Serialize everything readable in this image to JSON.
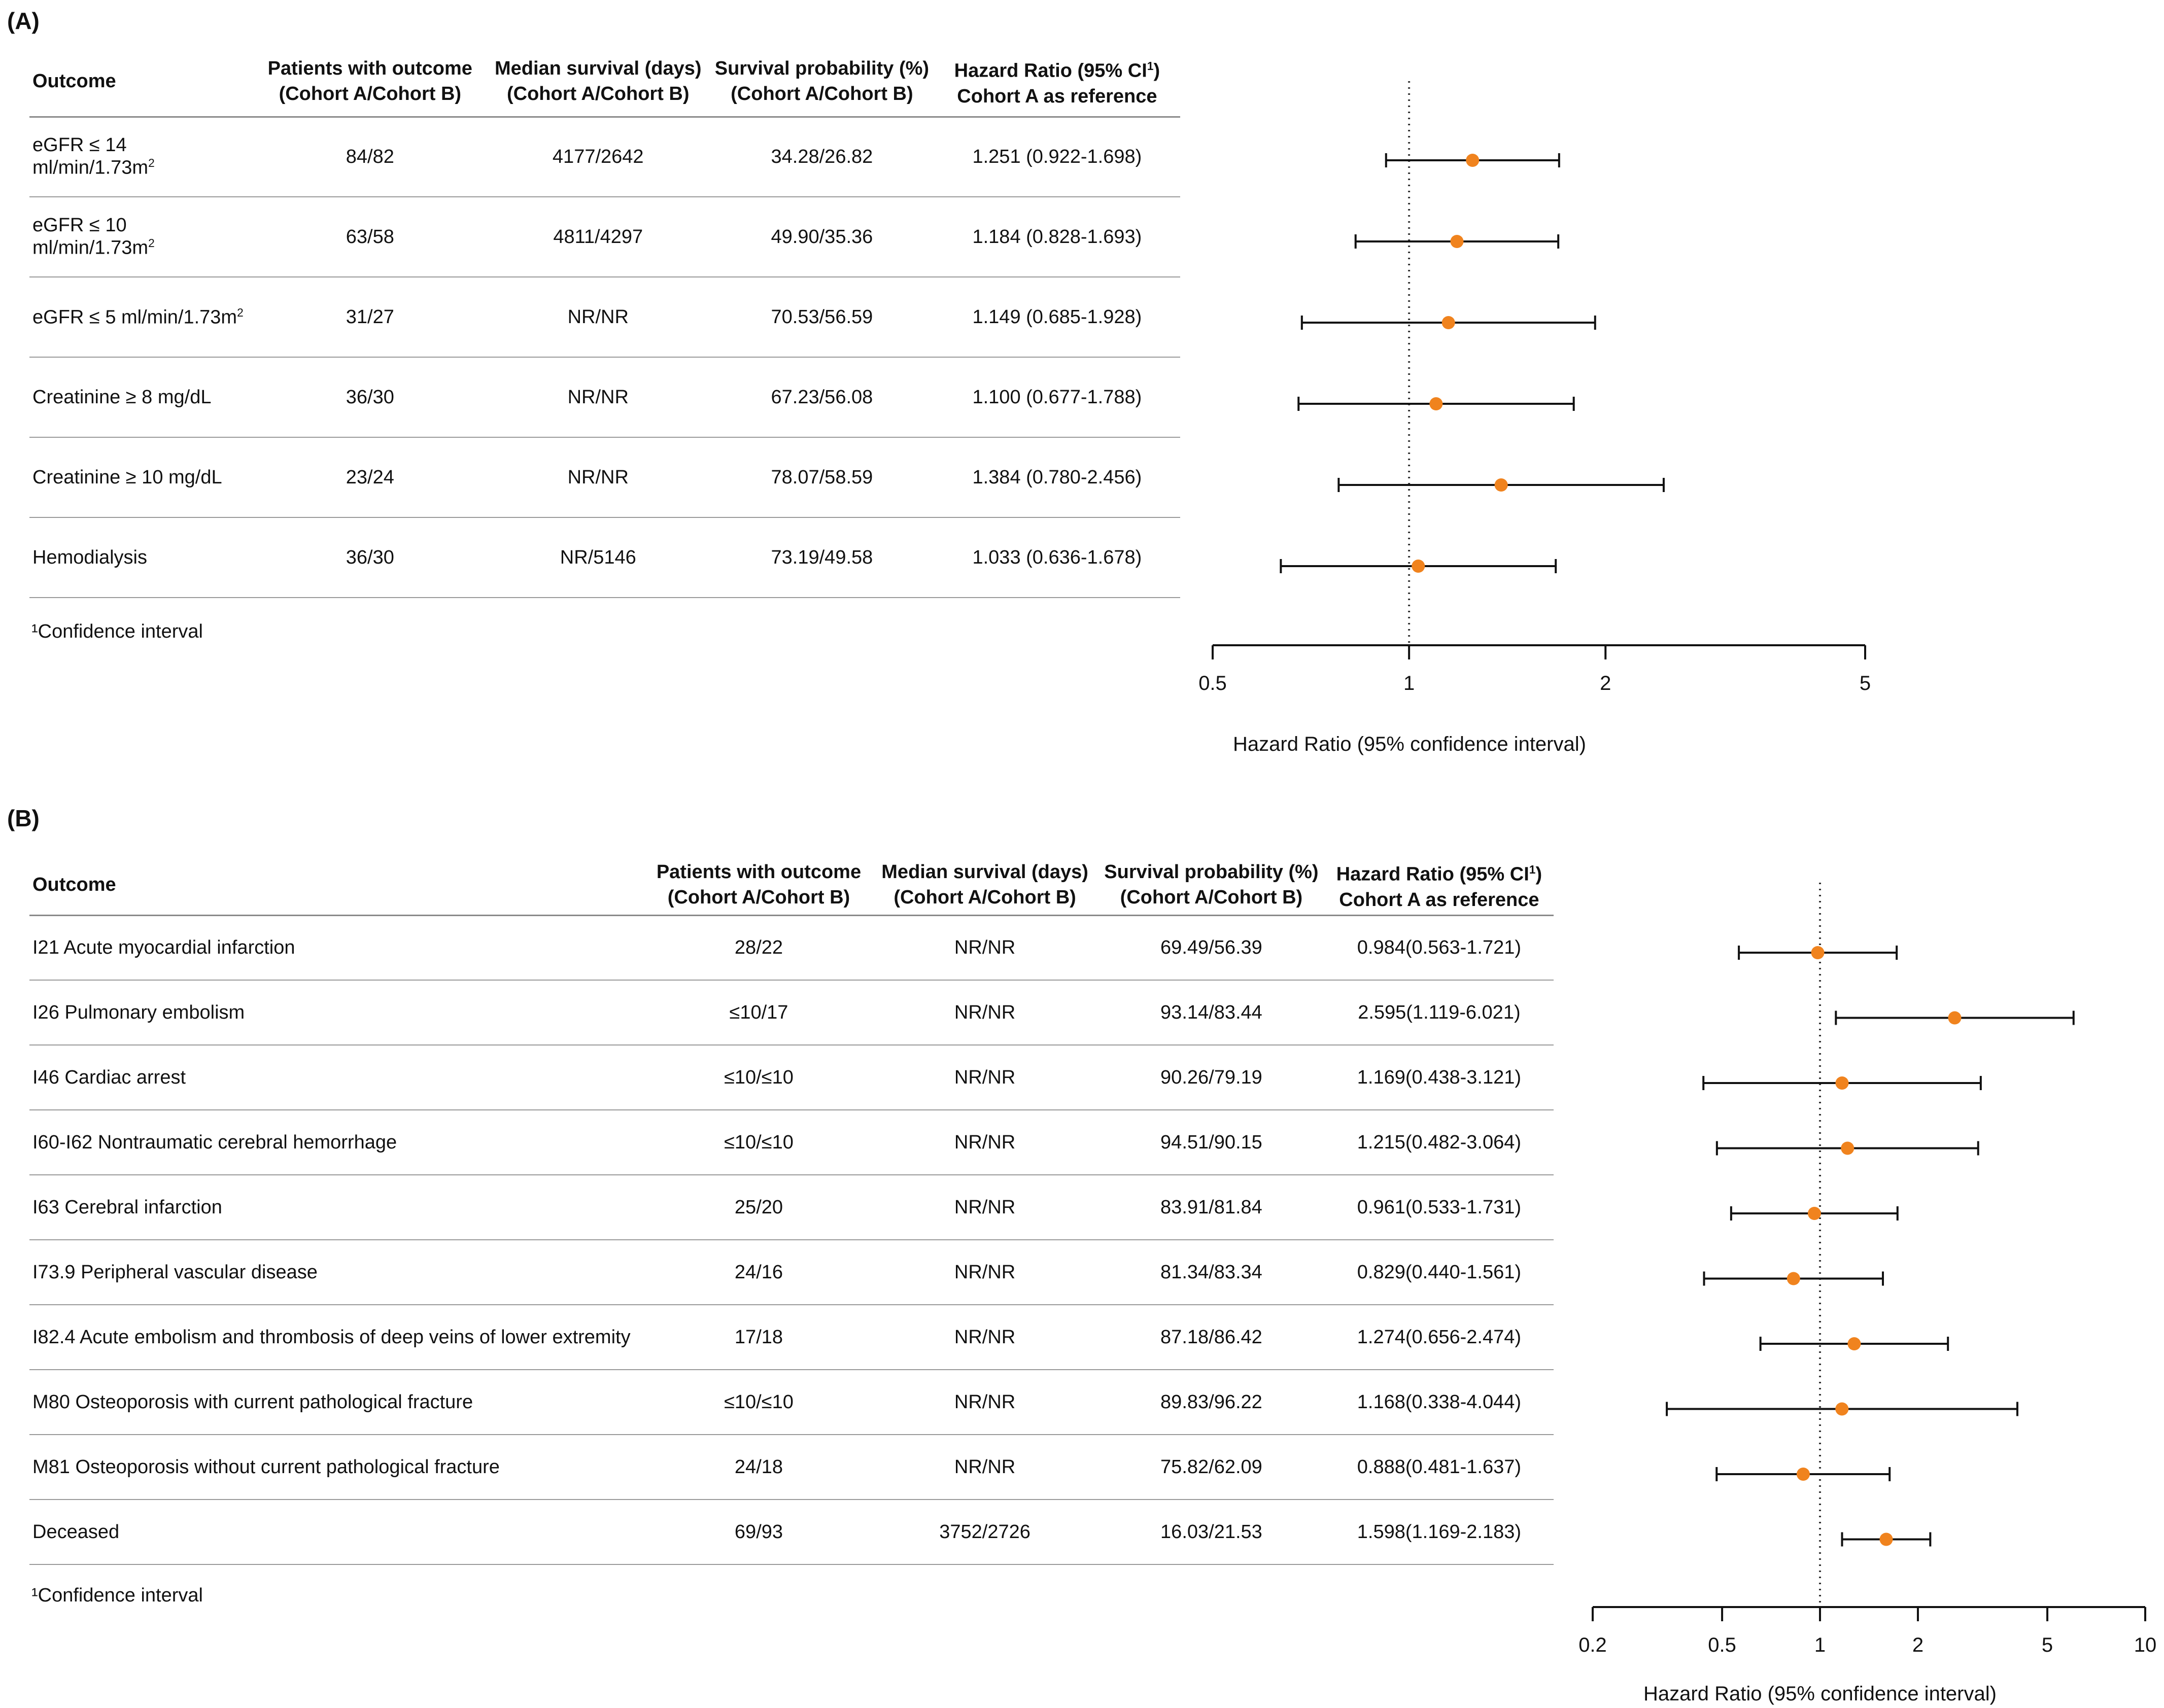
{
  "panel_a": {
    "label": "(A)",
    "headers": {
      "outcome": "Outcome",
      "patients_1": "Patients with outcome",
      "patients_2": "(Cohort A/Cohort B)",
      "median_1": "Median survival (days)",
      "median_2": "(Cohort A/Cohort B)",
      "prob_1": "Survival probability (%)",
      "prob_2": "(Cohort A/Cohort B)",
      "hr_1": "Hazard Ratio (95% CI",
      "hr_sup": "1",
      "hr_close": ")",
      "hr_2": "Cohort A as reference"
    },
    "rows": [
      {
        "outcome": "eGFR ≤ 14 ml/min/1.73m",
        "sup": "2",
        "patients": "84/82",
        "median": "4177/2642",
        "prob": "34.28/26.82",
        "hr_text": "1.251 (0.922-1.698)"
      },
      {
        "outcome": "eGFR ≤ 10 ml/min/1.73m",
        "sup": "2",
        "patients": "63/58",
        "median": "4811/4297",
        "prob": "49.90/35.36",
        "hr_text": "1.184 (0.828-1.693)"
      },
      {
        "outcome": "eGFR ≤ 5 ml/min/1.73m",
        "sup": "2",
        "patients": "31/27",
        "median": "NR/NR",
        "prob": "70.53/56.59",
        "hr_text": "1.149 (0.685-1.928)"
      },
      {
        "outcome": "Creatinine ≥ 8 mg/dL",
        "sup": "",
        "patients": "36/30",
        "median": "NR/NR",
        "prob": "67.23/56.08",
        "hr_text": "1.100 (0.677-1.788)"
      },
      {
        "outcome": "Creatinine ≥ 10 mg/dL",
        "sup": "",
        "patients": "23/24",
        "median": "NR/NR",
        "prob": "78.07/58.59",
        "hr_text": "1.384 (0.780-2.456)"
      },
      {
        "outcome": "Hemodialysis",
        "sup": "",
        "patients": "36/30",
        "median": "NR/5146",
        "prob": "73.19/49.58",
        "hr_text": "1.033 (0.636-1.678)"
      }
    ],
    "footnote": "¹Confidence interval"
  },
  "panel_b": {
    "label": "(B)",
    "headers": {
      "outcome": "Outcome",
      "patients_1": "Patients with outcome",
      "patients_2": "(Cohort A/Cohort B)",
      "median_1": "Median survival (days)",
      "median_2": "(Cohort A/Cohort B)",
      "prob_1": "Survival probability (%)",
      "prob_2": "(Cohort A/Cohort B)",
      "hr_1": "Hazard Ratio (95% CI",
      "hr_sup": "1",
      "hr_close": ")",
      "hr_2": "Cohort A as reference"
    },
    "rows": [
      {
        "outcome": "I21 Acute myocardial infarction",
        "patients": "28/22",
        "median": "NR/NR",
        "prob": "69.49/56.39",
        "hr_text": "0.984(0.563-1.721)"
      },
      {
        "outcome": "I26 Pulmonary embolism",
        "patients": "≤10/17",
        "median": "NR/NR",
        "prob": "93.14/83.44",
        "hr_text": "2.595(1.119-6.021)"
      },
      {
        "outcome": "I46 Cardiac arrest",
        "patients": "≤10/≤10",
        "median": "NR/NR",
        "prob": "90.26/79.19",
        "hr_text": "1.169(0.438-3.121)"
      },
      {
        "outcome": "I60-I62 Nontraumatic cerebral hemorrhage",
        "patients": "≤10/≤10",
        "median": "NR/NR",
        "prob": "94.51/90.15",
        "hr_text": "1.215(0.482-3.064)"
      },
      {
        "outcome": "I63 Cerebral infarction",
        "patients": "25/20",
        "median": "NR/NR",
        "prob": "83.91/81.84",
        "hr_text": "0.961(0.533-1.731)"
      },
      {
        "outcome": "I73.9 Peripheral vascular disease",
        "patients": "24/16",
        "median": "NR/NR",
        "prob": "81.34/83.34",
        "hr_text": "0.829(0.440-1.561)"
      },
      {
        "outcome": "I82.4 Acute embolism and thrombosis of deep veins of lower extremity",
        "patients": "17/18",
        "median": "NR/NR",
        "prob": "87.18/86.42",
        "hr_text": "1.274(0.656-2.474)"
      },
      {
        "outcome": "M80 Osteoporosis with current pathological fracture",
        "patients": "≤10/≤10",
        "median": "NR/NR",
        "prob": "89.83/96.22",
        "hr_text": "1.168(0.338-4.044)"
      },
      {
        "outcome": "M81 Osteoporosis without current pathological fracture",
        "patients": "24/18",
        "median": "NR/NR",
        "prob": "75.82/62.09",
        "hr_text": "0.888(0.481-1.637)"
      },
      {
        "outcome": "Deceased",
        "patients": "69/93",
        "median": "3752/2726",
        "prob": "16.03/21.53",
        "hr_text": "1.598(1.169-2.183)"
      }
    ],
    "footnote": "¹Confidence interval"
  },
  "chart_data": [
    {
      "type": "scatter",
      "subtype": "forest",
      "panel": "A",
      "xscale": "log",
      "xlim": [
        0.5,
        5
      ],
      "xticks": [
        0.5,
        1,
        2,
        5
      ],
      "xtick_labels": [
        "0.5",
        "1",
        "2",
        "5"
      ],
      "reference_line": 1,
      "xlabel": "Hazard Ratio (95% confidence interval)",
      "marker_color": "#f0831e",
      "points": [
        {
          "hr": 1.251,
          "lo": 0.922,
          "hi": 1.698
        },
        {
          "hr": 1.184,
          "lo": 0.828,
          "hi": 1.693
        },
        {
          "hr": 1.149,
          "lo": 0.685,
          "hi": 1.928
        },
        {
          "hr": 1.1,
          "lo": 0.677,
          "hi": 1.788
        },
        {
          "hr": 1.384,
          "lo": 0.78,
          "hi": 2.456
        },
        {
          "hr": 1.033,
          "lo": 0.636,
          "hi": 1.678
        }
      ]
    },
    {
      "type": "scatter",
      "subtype": "forest",
      "panel": "B",
      "xscale": "log",
      "xlim": [
        0.2,
        10
      ],
      "xticks": [
        0.2,
        0.5,
        1,
        2,
        5,
        10
      ],
      "xtick_labels": [
        "0.2",
        "0.5",
        "1",
        "2",
        "5",
        "10"
      ],
      "reference_line": 1,
      "xlabel": "Hazard Ratio (95% confidence interval)",
      "marker_color": "#f0831e",
      "points": [
        {
          "hr": 0.984,
          "lo": 0.563,
          "hi": 1.721
        },
        {
          "hr": 2.595,
          "lo": 1.119,
          "hi": 6.021
        },
        {
          "hr": 1.169,
          "lo": 0.438,
          "hi": 3.121
        },
        {
          "hr": 1.215,
          "lo": 0.482,
          "hi": 3.064
        },
        {
          "hr": 0.961,
          "lo": 0.533,
          "hi": 1.731
        },
        {
          "hr": 0.829,
          "lo": 0.44,
          "hi": 1.561
        },
        {
          "hr": 1.274,
          "lo": 0.656,
          "hi": 2.474
        },
        {
          "hr": 1.168,
          "lo": 0.338,
          "hi": 4.044
        },
        {
          "hr": 0.888,
          "lo": 0.481,
          "hi": 1.637
        },
        {
          "hr": 1.598,
          "lo": 1.169,
          "hi": 2.183
        }
      ]
    }
  ]
}
